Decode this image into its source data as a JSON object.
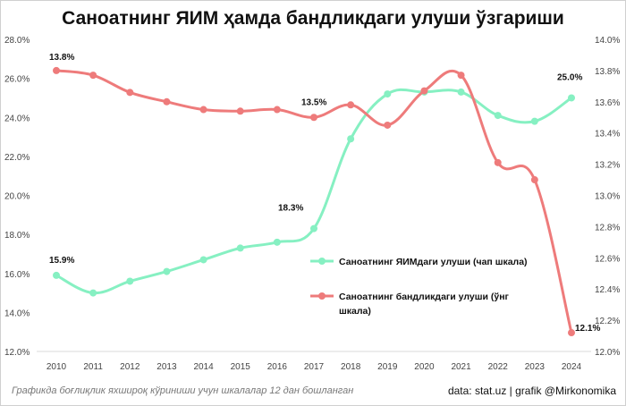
{
  "chart_data": {
    "type": "line",
    "title": "Саноатнинг ЯИМ ҳамда бандликдаги улуши ўзгариши",
    "categories": [
      "2010",
      "2011",
      "2012",
      "2013",
      "2014",
      "2015",
      "2016",
      "2017",
      "2018",
      "2019",
      "2020",
      "2021",
      "2022",
      "2023",
      "2024"
    ],
    "left_axis": {
      "ylim": [
        12,
        28
      ],
      "ticks": [
        "12.0%",
        "14.0%",
        "16.0%",
        "18.0%",
        "20.0%",
        "22.0%",
        "24.0%",
        "26.0%",
        "28.0%"
      ]
    },
    "right_axis": {
      "ylim": [
        12,
        14
      ],
      "ticks": [
        "12.0%",
        "12.2%",
        "12.4%",
        "12.6%",
        "12.8%",
        "13.0%",
        "13.2%",
        "13.4%",
        "13.6%",
        "13.8%",
        "14.0%"
      ]
    },
    "grid": false,
    "legend_position": "center-right",
    "series": [
      {
        "name": "Саноатнинг ЯИМдаги улуши (чап шкала)",
        "axis": "left",
        "color": "#86f0c2",
        "values": [
          15.9,
          15.0,
          15.6,
          16.1,
          16.7,
          17.3,
          17.6,
          18.3,
          22.9,
          25.2,
          25.3,
          25.3,
          24.1,
          23.8,
          25.0
        ],
        "data_labels": {
          "0": "15.9%",
          "7": "18.3%",
          "14": "25.0%"
        }
      },
      {
        "name": "Саноатнинг бандликдаги улуши (ўнг шкала)",
        "axis": "right",
        "color": "#ee7b7b",
        "values": [
          13.8,
          13.77,
          13.66,
          13.6,
          13.55,
          13.54,
          13.55,
          13.5,
          13.58,
          13.45,
          13.67,
          13.77,
          13.21,
          13.1,
          12.12
        ],
        "data_labels": {
          "0": "13.8%",
          "7": "13.5%",
          "14": "12.1%"
        }
      }
    ]
  },
  "footer": {
    "note": "Графикда боғлиқлик яхшироқ кўриниши учун шкалалар 12 дан бошланган",
    "credit": "data: stat.uz | grafik @Mirkonomika"
  }
}
